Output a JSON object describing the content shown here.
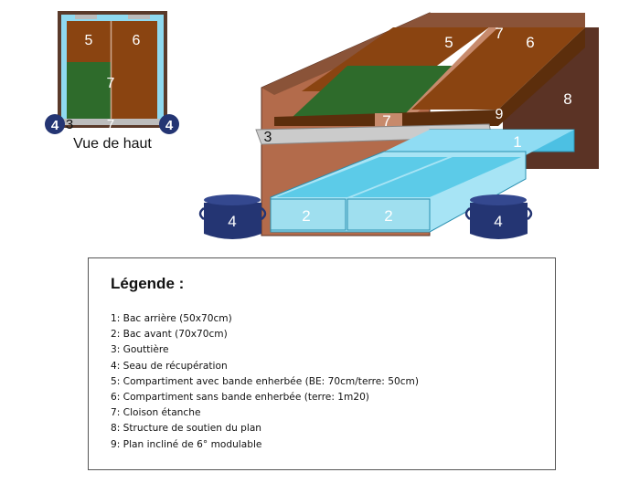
{
  "colors": {
    "soil": "#8a4411",
    "soil_dark": "#5c2e0c",
    "grass": "#2e6b2b",
    "water": "#7fd3ee",
    "water_dark": "#3fb6dd",
    "bucket": "#243573",
    "structure": "#b36b4b",
    "structure_dark": "#5b3325",
    "gutter": "#c8c8c8"
  },
  "topview": {
    "label5": "5",
    "label6": "6",
    "label7": "7",
    "label3": "3",
    "label7b": "7",
    "label4_left": "4",
    "label4_right": "4",
    "caption": "Vue de haut"
  },
  "main": {
    "label5": "5",
    "label7_top": "7",
    "label6": "6",
    "label8": "8",
    "label7_mid": "7",
    "label9": "9",
    "label3": "3",
    "label1": "1",
    "label2_left": "2",
    "label2_right": "2",
    "label4_left": "4",
    "label4_right": "4"
  },
  "legend": {
    "title": "Légende :",
    "items": [
      "1: Bac arrière (50x70cm)",
      "2: Bac avant (70x70cm)",
      "3: Gouttière",
      "4: Seau de récupération",
      "5: Compartiment avec bande enherbée (BE: 70cm/terre: 50cm)",
      "6: Compartiment sans bande enherbée (terre: 1m20)",
      "7: Cloison étanche",
      "8: Structure de soutien du plan",
      "9: Plan incliné de 6° modulable"
    ]
  }
}
